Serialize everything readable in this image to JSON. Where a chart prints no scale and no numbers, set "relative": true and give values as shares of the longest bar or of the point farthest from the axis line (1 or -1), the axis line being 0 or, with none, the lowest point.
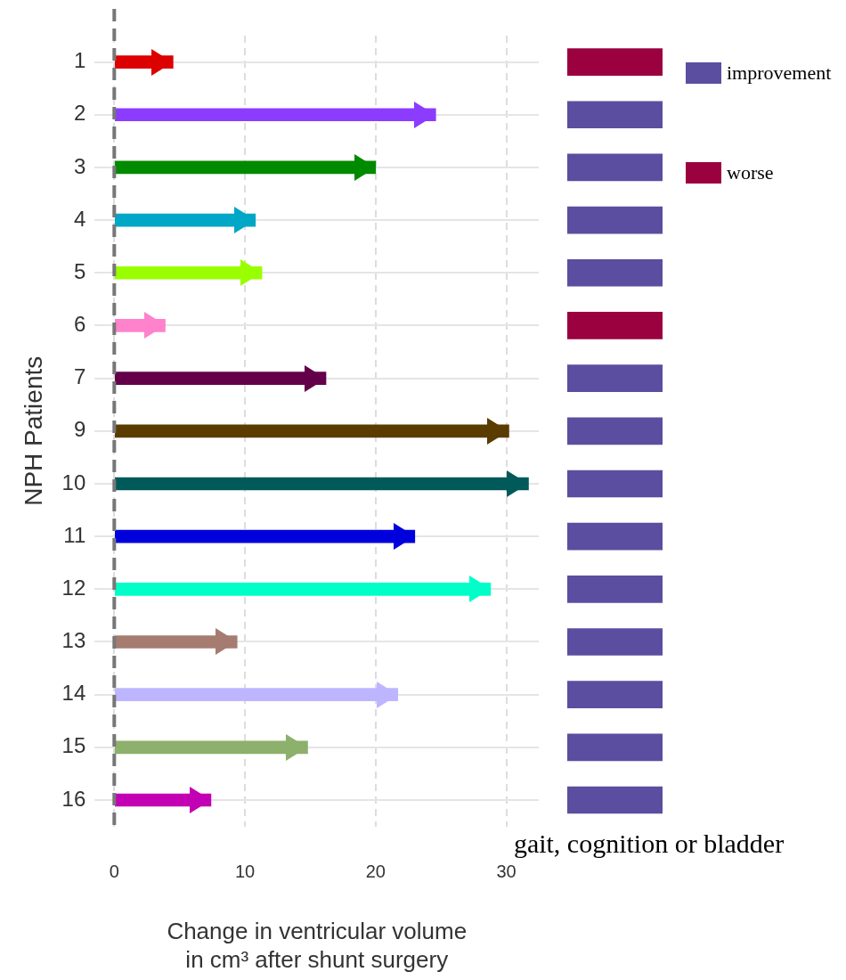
{
  "chart_data": [
    {
      "type": "bar",
      "orientation": "horizontal",
      "ylabel": "NPH Patients",
      "xlabel": "Change in ventricular volume\nin cm³ after shunt surgery",
      "categories": [
        "1",
        "2",
        "3",
        "4",
        "5",
        "6",
        "7",
        "9",
        "10",
        "11",
        "12",
        "13",
        "14",
        "15",
        "16"
      ],
      "xlim": [
        -1.5,
        32.5
      ],
      "xticks": [
        0,
        10,
        20,
        30
      ],
      "grid": true,
      "ref_lines": [
        {
          "axis": "x",
          "value": 0,
          "color": "#777777",
          "line_style": "dashed"
        }
      ],
      "series": [
        {
          "colors": [
            "#dd0000",
            "#8c3cff",
            "#008a00",
            "#00a7c7",
            "#99ff00",
            "#ff82cc",
            "#64004a",
            "#5a3b00",
            "#005a5a",
            "#0000dd",
            "#00ffc8",
            "#a67c70",
            "#bdb6ff",
            "#8db06c",
            "#c400b4"
          ],
          "values": [
            4.5,
            24.6,
            20.0,
            10.8,
            11.3,
            3.9,
            16.2,
            30.2,
            31.7,
            23.0,
            28.8,
            9.4,
            21.7,
            14.8,
            7.4
          ]
        }
      ]
    },
    {
      "type": "bar",
      "orientation": "horizontal",
      "relative": true,
      "stacked": true,
      "tick_labels": false,
      "legend": "top right",
      "legend_title": "gait, cognition or bladder",
      "categories": [
        "1",
        "2",
        "3",
        "4",
        "5",
        "6",
        "7",
        "9",
        "10",
        "11",
        "12",
        "13",
        "14",
        "15",
        "16"
      ],
      "series": [
        {
          "name": "improvement",
          "color": "#5b4ea0",
          "values": [
            null,
            1,
            1,
            1,
            1,
            null,
            1,
            1,
            1,
            1,
            1,
            1,
            1,
            1,
            1
          ]
        },
        {
          "name": "worse",
          "color": "#9b003f",
          "values": [
            1,
            null,
            null,
            null,
            null,
            1,
            null,
            null,
            null,
            null,
            null,
            null,
            null,
            null,
            null
          ]
        }
      ]
    }
  ]
}
